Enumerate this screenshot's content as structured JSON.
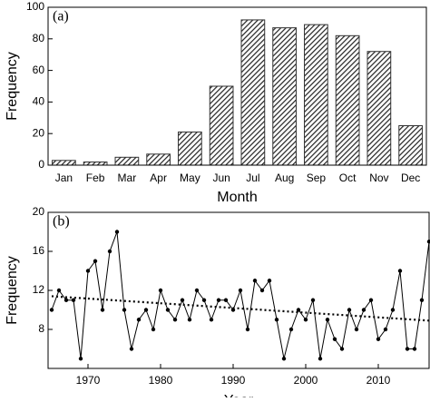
{
  "chart_data": [
    {
      "type": "bar",
      "panel_label": "(a)",
      "xlabel": "Month",
      "ylabel": "Frequency",
      "categories": [
        "Jan",
        "Feb",
        "Mar",
        "Apr",
        "May",
        "Jun",
        "Jul",
        "Aug",
        "Sep",
        "Oct",
        "Nov",
        "Dec"
      ],
      "values": [
        3,
        2,
        5,
        7,
        21,
        50,
        92,
        87,
        89,
        82,
        72,
        25
      ],
      "color": "#333333",
      "ylim": [
        0,
        100
      ],
      "yticks": [
        0,
        20,
        40,
        60,
        80,
        100
      ]
    },
    {
      "type": "line",
      "panel_label": "(b)",
      "xlabel": "Year",
      "ylabel": "Frequency",
      "x": [
        1965,
        1966,
        1967,
        1968,
        1969,
        1970,
        1971,
        1972,
        1973,
        1974,
        1975,
        1976,
        1977,
        1978,
        1979,
        1980,
        1981,
        1982,
        1983,
        1984,
        1985,
        1986,
        1987,
        1988,
        1989,
        1990,
        1991,
        1992,
        1993,
        1994,
        1995,
        1996,
        1997,
        1998,
        1999,
        2000,
        2001,
        2002,
        2003,
        2004,
        2005,
        2006,
        2007,
        2008,
        2009,
        2010,
        2011,
        2012,
        2013,
        2014,
        2015,
        2016,
        2017
      ],
      "series": [
        {
          "color": "#000000",
          "values": [
            10,
            12,
            11,
            11,
            5,
            14,
            15,
            10,
            16,
            18,
            10,
            6,
            9,
            10,
            8,
            12,
            10,
            9,
            11,
            9,
            12,
            11,
            9,
            11,
            11,
            10,
            12,
            8,
            13,
            12,
            13,
            9,
            5,
            8,
            10,
            9,
            11,
            5,
            9,
            7,
            6,
            10,
            8,
            10,
            11,
            7,
            8,
            10,
            14,
            6,
            6,
            11,
            17
          ]
        }
      ],
      "trend": {
        "x": [
          1965,
          2017
        ],
        "values": [
          11.4,
          8.9
        ]
      },
      "xlim": [
        1964.5,
        2017
      ],
      "xticks": [
        1970,
        1980,
        1990,
        2000,
        2010
      ],
      "ylim": [
        4,
        20
      ],
      "yticks": [
        8,
        12,
        16,
        20
      ]
    }
  ]
}
